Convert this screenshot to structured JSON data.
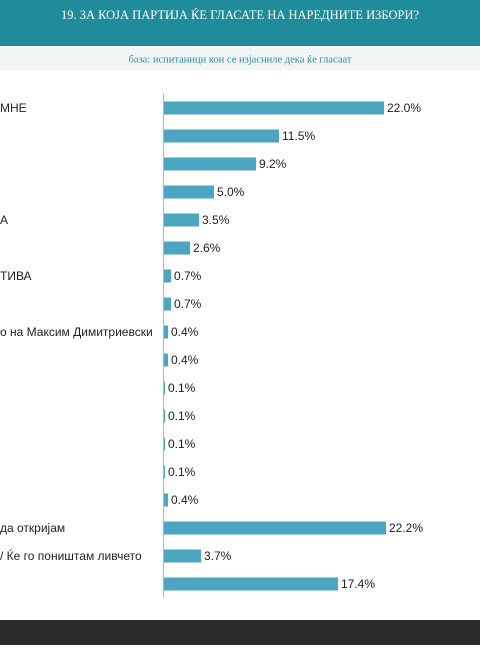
{
  "chart_data": {
    "type": "hbar",
    "title": "19. ЗА КОЈА ПАРТИЈА ЌЕ ГЛАСАТЕ НА НАРЕДНИТЕ ИЗБОРИ?",
    "subtitle": "база: испитаници кои се изјасниле дека ќе гласаат",
    "categories": [
      "МНЕ",
      null,
      null,
      null,
      "А",
      null,
      "ТИВА",
      null,
      "о на Максим Димитриевски",
      null,
      null,
      null,
      null,
      null,
      null,
      "да откријам",
      "/ Ќе го поништам ливчето",
      null
    ],
    "values": [
      22.0,
      11.5,
      9.2,
      5.0,
      3.5,
      2.6,
      0.7,
      0.7,
      0.4,
      0.4,
      0.1,
      0.1,
      0.1,
      0.1,
      0.4,
      22.2,
      3.7,
      17.4
    ],
    "value_labels": [
      "22.0%",
      "11.5%",
      "9.2%",
      "5.0%",
      "3.5%",
      "2.6%",
      "0.7%",
      "0.7%",
      "0.4%",
      "0.4%",
      "0.1%",
      "0.1%",
      "0.1%",
      "0.1%",
      "0.4%",
      "22.2%",
      "3.7%",
      "17.4%"
    ],
    "color": "#4aa6c1"
  }
}
